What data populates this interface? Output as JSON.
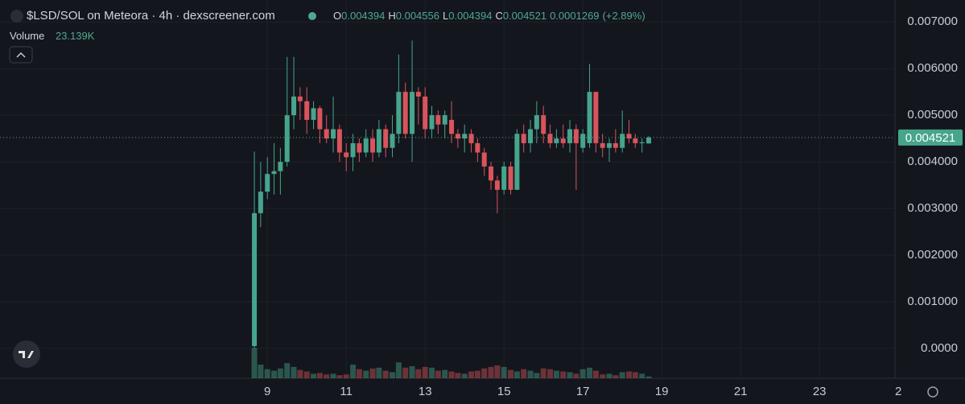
{
  "header": {
    "title": "$LSD/SOL on Meteora · 4h · dexscreener.com",
    "ohlc": [
      {
        "label": "O",
        "value": "0.004394"
      },
      {
        "label": "H",
        "value": "0.004556"
      },
      {
        "label": "L",
        "value": "0.004394"
      },
      {
        "label": "C",
        "value": "0.004521"
      }
    ],
    "change": "0.0001269",
    "change_pct": "(+2.89%)",
    "volume_label": "Volume",
    "volume_value": "23.139K"
  },
  "chart_data": {
    "type": "candlestick",
    "up_color": "#46a58c",
    "down_color": "#d9545c",
    "grid": true,
    "xlim": [
      2.22,
      26.69
    ],
    "ylim": [
      -0.00064,
      0.00747
    ],
    "volume_lim": [
      0,
      500
    ],
    "last_price": {
      "value": 0.004521,
      "label": "0.004521"
    },
    "yticks": [
      {
        "value": 0,
        "label": "0.0000"
      },
      {
        "value": 0.001,
        "label": "0.001000"
      },
      {
        "value": 0.002,
        "label": "0.002000"
      },
      {
        "value": 0.003,
        "label": "0.003000"
      },
      {
        "value": 0.004,
        "label": "0.004000"
      },
      {
        "value": 0.005,
        "label": "0.005000"
      },
      {
        "value": 0.006,
        "label": "0.006000"
      },
      {
        "value": 0.007,
        "label": "0.007000"
      }
    ],
    "xticks": [
      9,
      11,
      13,
      15,
      17,
      19,
      21,
      23,
      {
        "value": 25,
        "label": "2"
      }
    ],
    "x": [
      8.67,
      8.83,
      9.0,
      9.17,
      9.33,
      9.5,
      9.67,
      9.83,
      10.0,
      10.17,
      10.33,
      10.5,
      10.67,
      10.83,
      11.0,
      11.17,
      11.33,
      11.5,
      11.67,
      11.83,
      12.0,
      12.17,
      12.33,
      12.5,
      12.67,
      12.83,
      13.0,
      13.17,
      13.33,
      13.5,
      13.67,
      13.83,
      14.0,
      14.17,
      14.33,
      14.5,
      14.67,
      14.83,
      15.0,
      15.17,
      15.33,
      15.5,
      15.67,
      15.83,
      16.0,
      16.17,
      16.33,
      16.5,
      16.67,
      16.83,
      17.0,
      17.17,
      17.33,
      17.5,
      17.67,
      17.83,
      18.0,
      18.17,
      18.33,
      18.5,
      18.67
    ],
    "open": [
      5e-05,
      0.0029,
      0.00336,
      0.00374,
      0.0038,
      0.004,
      0.005,
      0.0054,
      0.0053,
      0.0049,
      0.00515,
      0.0047,
      0.0045,
      0.0047,
      0.0042,
      0.0041,
      0.0044,
      0.0042,
      0.0045,
      0.0042,
      0.0047,
      0.0043,
      0.0046,
      0.0055,
      0.0046,
      0.0055,
      0.0054,
      0.0047,
      0.005,
      0.0048,
      0.0049,
      0.0046,
      0.0045,
      0.0046,
      0.0044,
      0.0042,
      0.0039,
      0.0036,
      0.0034,
      0.0039,
      0.0034,
      0.0046,
      0.0044,
      0.0047,
      0.005,
      0.0046,
      0.0044,
      0.0045,
      0.0044,
      0.0047,
      0.0043,
      0.0044,
      0.0055,
      0.0044,
      0.0043,
      0.0044,
      0.0043,
      0.0046,
      0.0045,
      0.0044,
      0.004394
    ],
    "high": [
      0.00422,
      0.004,
      0.0041,
      0.0044,
      0.0043,
      0.00625,
      0.00625,
      0.0056,
      0.0056,
      0.0053,
      0.0052,
      0.005,
      0.0054,
      0.0048,
      0.0044,
      0.0046,
      0.0045,
      0.0047,
      0.0047,
      0.0049,
      0.0048,
      0.005,
      0.0063,
      0.0057,
      0.0066,
      0.0056,
      0.0056,
      0.0052,
      0.0051,
      0.0051,
      0.0053,
      0.0047,
      0.0048,
      0.0047,
      0.0045,
      0.0043,
      0.004,
      0.0037,
      0.004,
      0.004,
      0.0047,
      0.0048,
      0.0049,
      0.0053,
      0.0052,
      0.0048,
      0.0047,
      0.0048,
      0.0049,
      0.0048,
      0.0047,
      0.0061,
      0.0055,
      0.0046,
      0.0045,
      0.0047,
      0.0051,
      0.0049,
      0.0046,
      0.0045,
      0.004556
    ],
    "low": [
      0,
      0.0026,
      0.0032,
      0.0033,
      0.0033,
      0.0039,
      0.0047,
      0.0049,
      0.0046,
      0.0047,
      0.0044,
      0.0044,
      0.0042,
      0.004,
      0.0038,
      0.0038,
      0.004,
      0.0041,
      0.004,
      0.0041,
      0.0041,
      0.0041,
      0.0044,
      0.0045,
      0.004,
      0.0048,
      0.0045,
      0.0045,
      0.0046,
      0.0045,
      0.0044,
      0.0043,
      0.0042,
      0.0042,
      0.004,
      0.0037,
      0.0034,
      0.0029,
      0.0033,
      0.0033,
      0.0034,
      0.0042,
      0.0042,
      0.0044,
      0.0044,
      0.0043,
      0.0043,
      0.0043,
      0.0042,
      0.0034,
      0.0042,
      0.0043,
      0.0042,
      0.0041,
      0.004,
      0.0042,
      0.0042,
      0.0044,
      0.0043,
      0.0042,
      0.004394
    ],
    "close": [
      0.0029,
      0.00336,
      0.00374,
      0.0038,
      0.004,
      0.005,
      0.0054,
      0.0053,
      0.0049,
      0.00515,
      0.0047,
      0.0045,
      0.0047,
      0.0042,
      0.0041,
      0.0044,
      0.0042,
      0.0045,
      0.0042,
      0.0047,
      0.0043,
      0.0046,
      0.0055,
      0.0046,
      0.0055,
      0.0054,
      0.0047,
      0.005,
      0.0048,
      0.005,
      0.0046,
      0.0045,
      0.0046,
      0.0044,
      0.0042,
      0.0039,
      0.0036,
      0.0034,
      0.0039,
      0.0034,
      0.0046,
      0.0044,
      0.0047,
      0.005,
      0.0046,
      0.0044,
      0.0045,
      0.0044,
      0.0047,
      0.0044,
      0.0046,
      0.0055,
      0.0044,
      0.0043,
      0.0044,
      0.0043,
      0.0046,
      0.0045,
      0.0044,
      0.00442,
      0.004521
    ],
    "volume": [
      400,
      180,
      120,
      100,
      130,
      200,
      150,
      110,
      90,
      60,
      70,
      50,
      60,
      40,
      50,
      180,
      120,
      100,
      130,
      140,
      100,
      80,
      210,
      140,
      160,
      120,
      150,
      140,
      100,
      110,
      90,
      70,
      60,
      90,
      100,
      130,
      150,
      170,
      150,
      110,
      90,
      120,
      100,
      70,
      130,
      120,
      100,
      90,
      80,
      60,
      120,
      140,
      100,
      50,
      60,
      40,
      80,
      90,
      80,
      60,
      23.139
    ]
  }
}
